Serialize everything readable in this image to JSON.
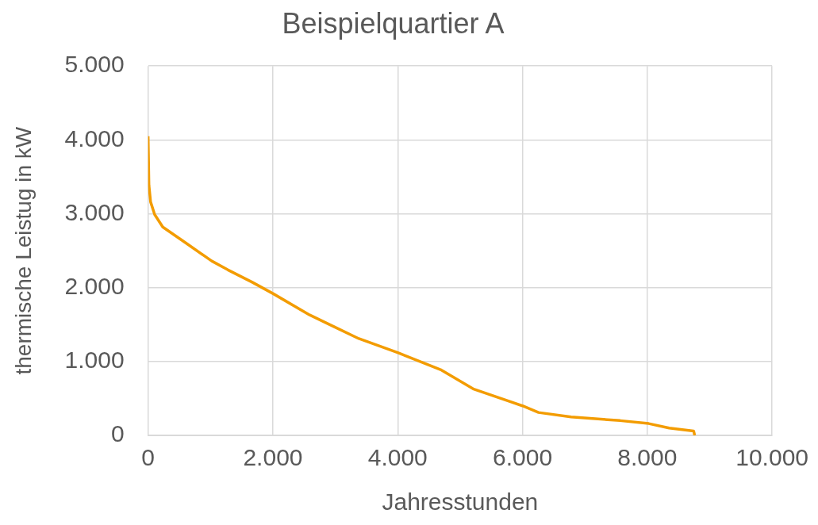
{
  "chart_data": {
    "type": "line",
    "title": "Beispielquartier A",
    "xlabel": "Jahresstunden",
    "ylabel": "thermische Leistug in kW",
    "x": [
      0,
      13,
      40,
      105,
      235,
      630,
      1020,
      1280,
      1675,
      2000,
      2590,
      2984,
      3377,
      4000,
      4686,
      5209,
      6000,
      6257,
      6780,
      7565,
      8023,
      8351,
      8743,
      8760
    ],
    "series": [
      {
        "color": "#f39c00",
        "values": [
          4050,
          3390,
          3160,
          2990,
          2820,
          2590,
          2360,
          2240,
          2070,
          1920,
          1630,
          1470,
          1310,
          1120,
          890,
          630,
          400,
          310,
          250,
          200,
          160,
          100,
          60,
          0
        ]
      }
    ],
    "xlim": [
      0,
      10000
    ],
    "xticks": [
      0,
      {
        "value": 2000,
        "label": "2.000"
      },
      {
        "value": 4000,
        "label": "4.000"
      },
      {
        "value": 6000,
        "label": "6.000"
      },
      {
        "value": 8000,
        "label": "8.000"
      },
      {
        "value": 10000,
        "label": "10.000"
      }
    ],
    "ylim": [
      0,
      5000
    ],
    "yticks": [
      0,
      {
        "value": 1000,
        "label": "1.000"
      },
      {
        "value": 2000,
        "label": "2.000"
      },
      {
        "value": 3000,
        "label": "3.000"
      },
      {
        "value": 4000,
        "label": "4.000"
      },
      {
        "value": 5000,
        "label": "5.000"
      }
    ],
    "grid": true,
    "legend": false,
    "marker": "none",
    "line_style": "solid"
  }
}
